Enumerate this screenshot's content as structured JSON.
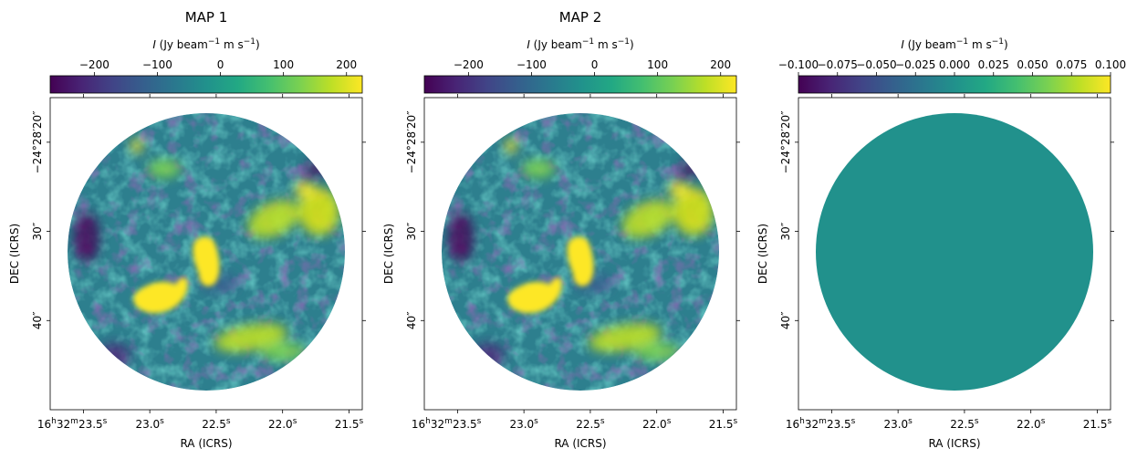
{
  "chart_data": [
    {
      "type": "heatmap",
      "title": "MAP 1",
      "colorbar": {
        "label_symbol": "I",
        "label_text": " (Jy beam",
        "label_unit_sup": "−1",
        "label_after": " m s",
        "label_unit_sup2": "−1",
        "label_close": ")",
        "colormap": "viridis",
        "range": [
          -270,
          225
        ],
        "ticks": [
          -200,
          -100,
          0,
          100,
          200
        ],
        "tick_labels": [
          "−200",
          "−100",
          "0",
          "100",
          "200"
        ]
      },
      "xlabel": "RA (ICRS)",
      "ylabel": "DEC (ICRS)",
      "x_ticks": [
        {
          "label_main": "16",
          "h": "h",
          "m_main": "32",
          "m": "m",
          "s_main": "23.5",
          "s": "s",
          "ra_s": 23.5
        },
        {
          "label": "23.0",
          "s": "s",
          "ra_s": 23.0
        },
        {
          "label": "22.5",
          "s": "s",
          "ra_s": 22.5
        },
        {
          "label": "22.0",
          "s": "s",
          "ra_s": 22.0
        },
        {
          "label": "21.5",
          "s": "s",
          "ra_s": 21.5
        }
      ],
      "y_ticks": [
        {
          "label": "−24°28′20″",
          "dec_arcsec": 20
        },
        {
          "label": "30″",
          "dec_arcsec": 30
        },
        {
          "label": "40″",
          "dec_arcsec": 40
        }
      ],
      "ra_range_s": [
        23.75,
        21.4
      ],
      "dec_range_arcsec": [
        15,
        50
      ],
      "field": "circular mosaic, radius ≈ 15″, centered RA 16h32m22.63s DEC −24°28′32″",
      "features": [
        {
          "name": "compact bright source",
          "ra_s": 22.98,
          "dec_arcsec": 37.5,
          "intensity": 225
        },
        {
          "name": "compact bright source",
          "ra_s": 22.72,
          "dec_arcsec": 33.5,
          "intensity": 225
        },
        {
          "name": "extended emission",
          "ra_s": 22.2,
          "dec_arcsec": 29.5,
          "intensity": 180
        },
        {
          "name": "extended emission",
          "ra_s": 22.3,
          "dec_arcsec": 41.5,
          "intensity": 160
        },
        {
          "name": "extended emission",
          "ra_s": 21.7,
          "dec_arcsec": 27.0,
          "intensity": 170
        }
      ]
    },
    {
      "type": "heatmap",
      "title": "MAP 2",
      "colorbar": {
        "label_symbol": "I",
        "label_text": " (Jy beam",
        "label_unit_sup": "−1",
        "label_after": " m s",
        "label_unit_sup2": "−1",
        "label_close": ")",
        "colormap": "viridis",
        "range": [
          -270,
          225
        ],
        "ticks": [
          -200,
          -100,
          0,
          100,
          200
        ],
        "tick_labels": [
          "−200",
          "−100",
          "0",
          "100",
          "200"
        ]
      },
      "xlabel": "RA (ICRS)",
      "ylabel": "DEC (ICRS)",
      "x_ticks": [
        {
          "label_main": "16",
          "h": "h",
          "m_main": "32",
          "m": "m",
          "s_main": "23.5",
          "s": "s",
          "ra_s": 23.5
        },
        {
          "label": "23.0",
          "s": "s",
          "ra_s": 23.0
        },
        {
          "label": "22.5",
          "s": "s",
          "ra_s": 22.5
        },
        {
          "label": "22.0",
          "s": "s",
          "ra_s": 22.0
        },
        {
          "label": "21.5",
          "s": "s",
          "ra_s": 21.5
        }
      ],
      "y_ticks": [
        {
          "label": "−24°28′20″",
          "dec_arcsec": 20
        },
        {
          "label": "30″",
          "dec_arcsec": 30
        },
        {
          "label": "40″",
          "dec_arcsec": 40
        }
      ],
      "ra_range_s": [
        23.75,
        21.4
      ],
      "dec_range_arcsec": [
        15,
        50
      ],
      "field": "identical to MAP 1",
      "features": [
        {
          "name": "compact bright source",
          "ra_s": 22.98,
          "dec_arcsec": 37.5,
          "intensity": 225
        },
        {
          "name": "compact bright source",
          "ra_s": 22.72,
          "dec_arcsec": 33.5,
          "intensity": 225
        },
        {
          "name": "extended emission",
          "ra_s": 22.2,
          "dec_arcsec": 29.5,
          "intensity": 180
        },
        {
          "name": "extended emission",
          "ra_s": 22.3,
          "dec_arcsec": 41.5,
          "intensity": 160
        },
        {
          "name": "extended emission",
          "ra_s": 21.7,
          "dec_arcsec": 27.0,
          "intensity": 170
        }
      ]
    },
    {
      "type": "heatmap",
      "title": "",
      "colorbar": {
        "label_symbol": "I",
        "label_text": " (Jy beam",
        "label_unit_sup": "−1",
        "label_after": " m s",
        "label_unit_sup2": "−1",
        "label_close": ")",
        "colormap": "viridis",
        "range": [
          -0.1,
          0.1
        ],
        "ticks": [
          -0.1,
          -0.075,
          -0.05,
          -0.025,
          0.0,
          0.025,
          0.05,
          0.075,
          0.1
        ],
        "tick_labels": [
          "−0.100",
          "−0.075",
          "−0.050",
          "−0.025",
          "0.000",
          "0.025",
          "0.050",
          "0.075",
          "0.100"
        ]
      },
      "xlabel": "RA (ICRS)",
      "ylabel": "DEC (ICRS)",
      "x_ticks": [
        {
          "label_main": "16",
          "h": "h",
          "m_main": "32",
          "m": "m",
          "s_main": "23.5",
          "s": "s",
          "ra_s": 23.5
        },
        {
          "label": "23.0",
          "s": "s",
          "ra_s": 23.0
        },
        {
          "label": "22.5",
          "s": "s",
          "ra_s": 22.5
        },
        {
          "label": "22.0",
          "s": "s",
          "ra_s": 22.0
        },
        {
          "label": "21.5",
          "s": "s",
          "ra_s": 21.5
        }
      ],
      "y_ticks": [
        {
          "label": "−24°28′20″",
          "dec_arcsec": 20
        },
        {
          "label": "30″",
          "dec_arcsec": 30
        },
        {
          "label": "40″",
          "dec_arcsec": 40
        }
      ],
      "ra_range_s": [
        23.75,
        21.4
      ],
      "dec_range_arcsec": [
        15,
        50
      ],
      "field": "difference map, uniform value 0.0",
      "uniform_value": 0.0,
      "fill_color": "#21918c"
    }
  ]
}
